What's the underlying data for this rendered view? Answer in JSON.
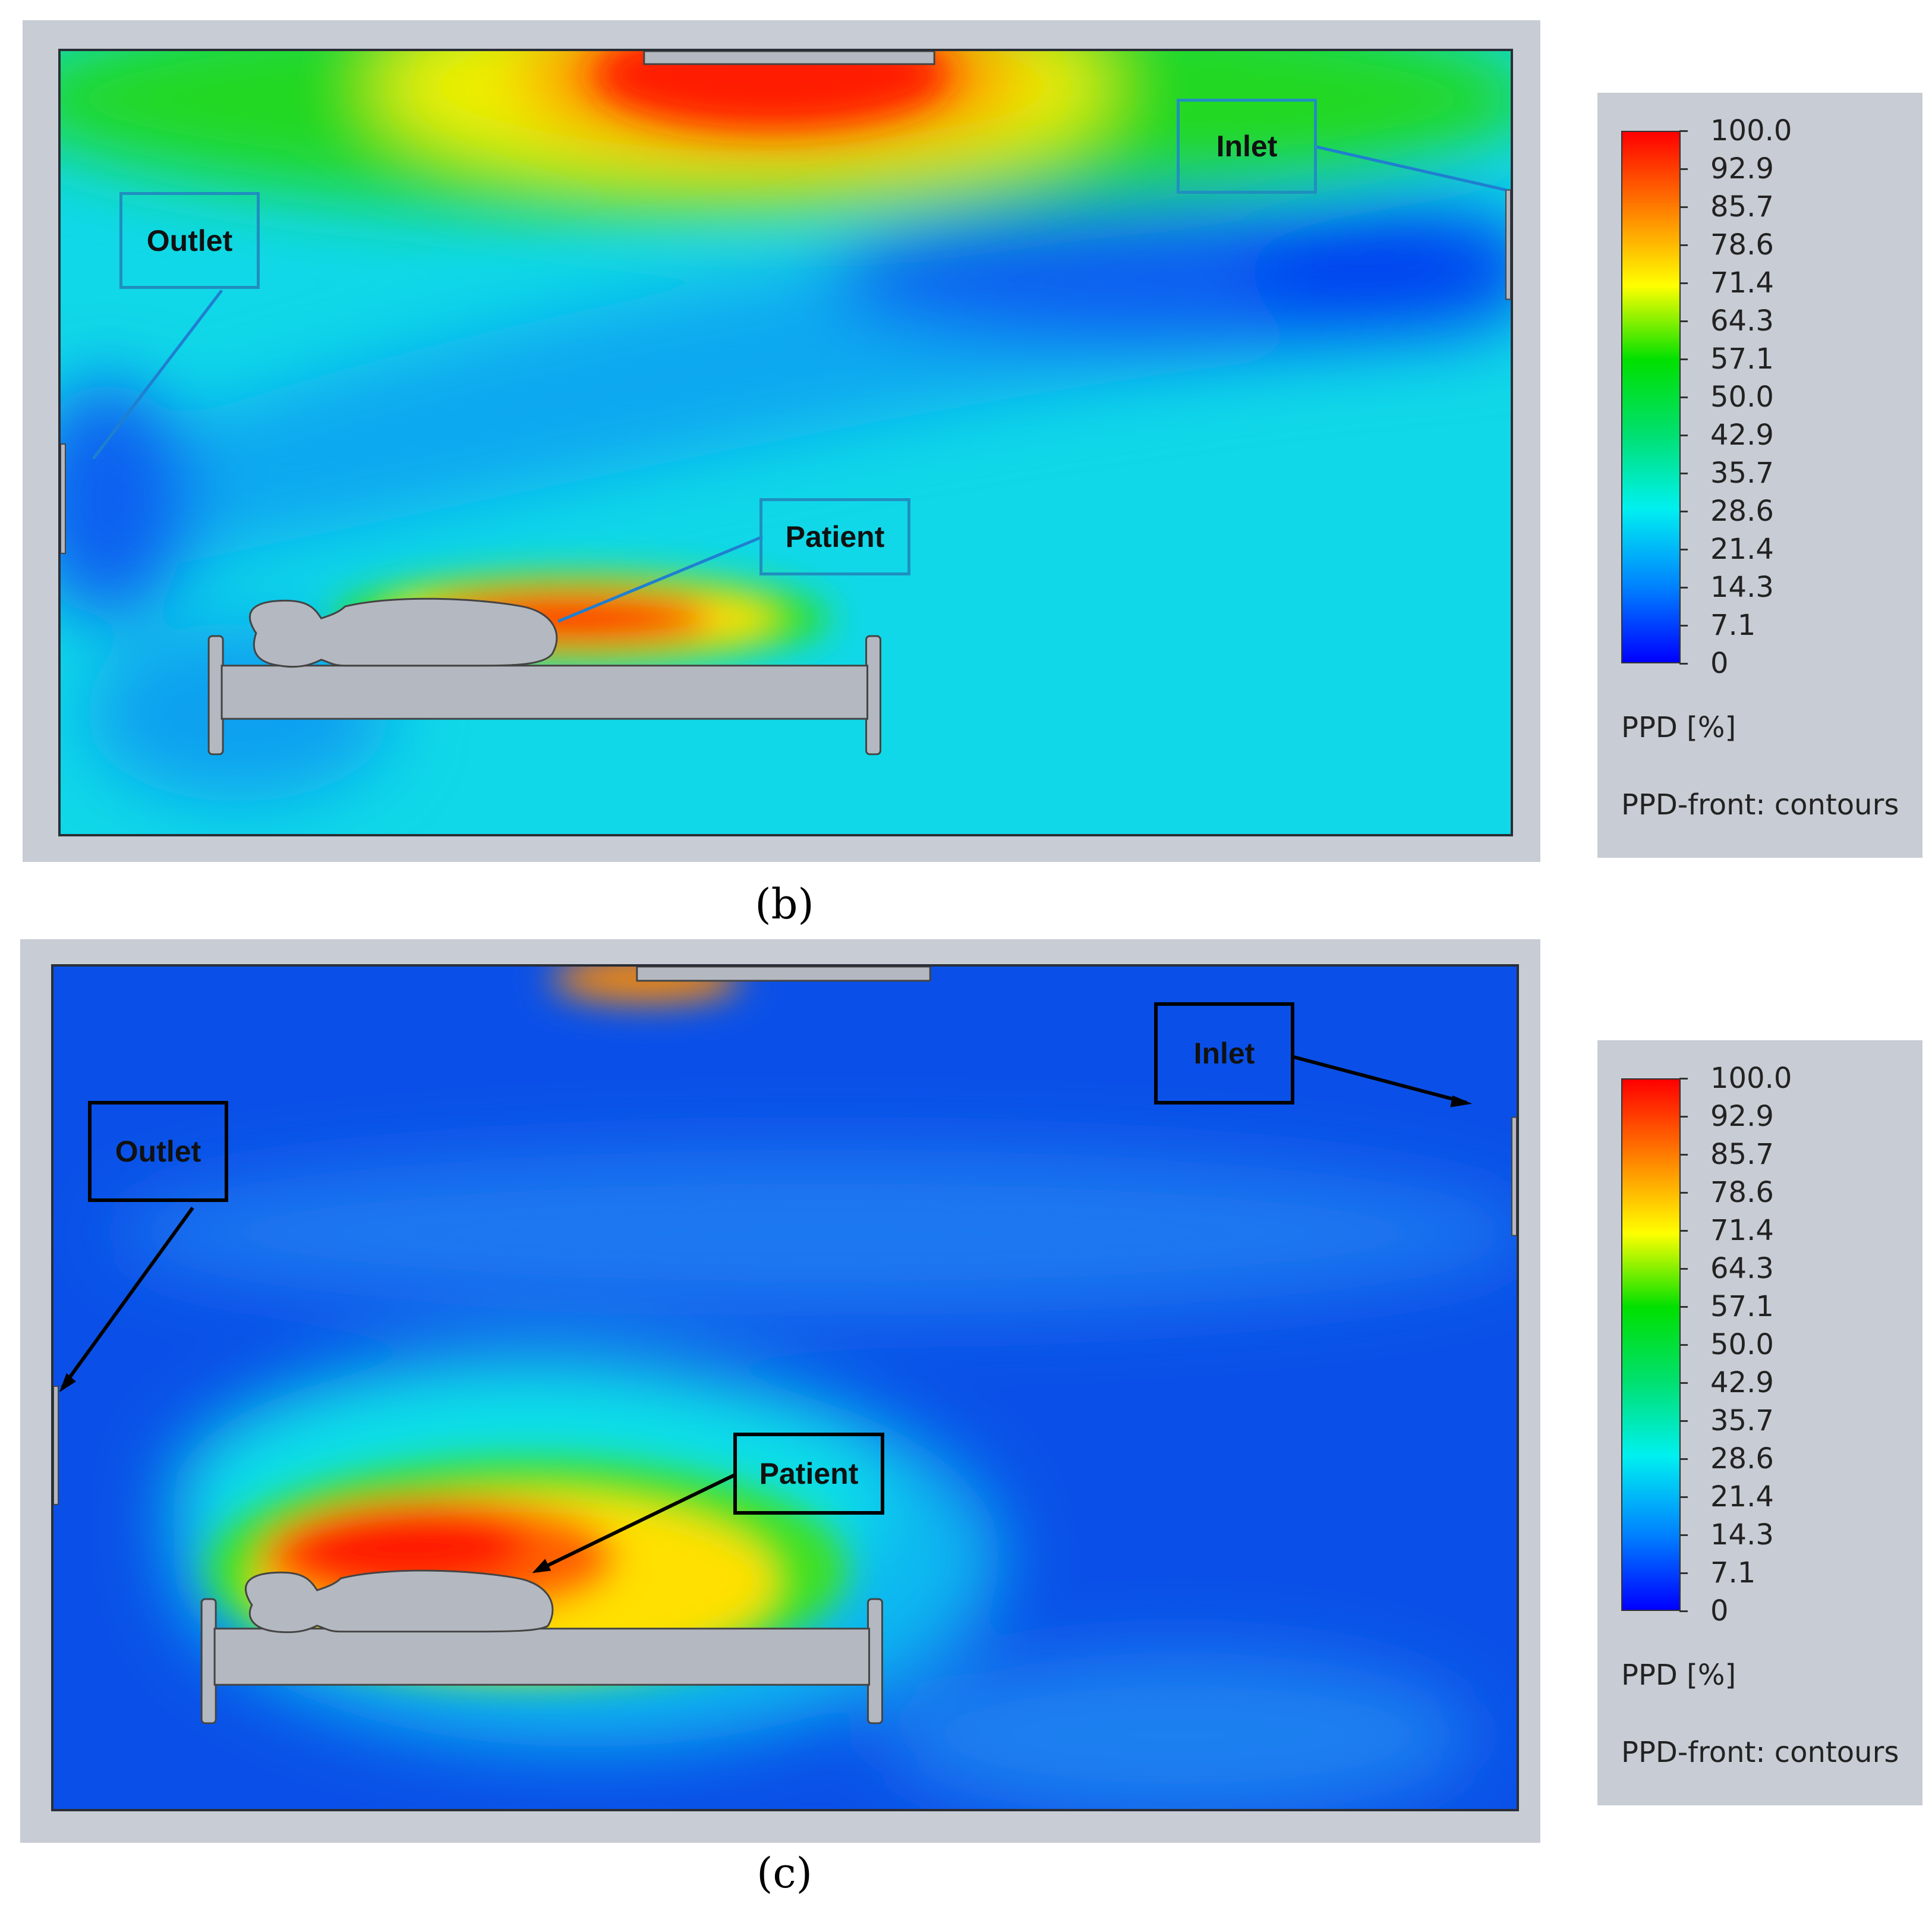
{
  "panels": [
    {
      "caption": "(b)",
      "labels": {
        "outlet": "Outlet",
        "inlet": "Inlet",
        "patient": "Patient"
      },
      "callout_color": "#1f8fbf"
    },
    {
      "caption": "(c)",
      "labels": {
        "outlet": "Outlet",
        "inlet": "Inlet",
        "patient": "Patient"
      },
      "callout_color": "#000000"
    }
  ],
  "legend": {
    "ticks": [
      "100.0",
      "92.9",
      "85.7",
      "78.6",
      "71.4",
      "64.3",
      "57.1",
      "50.0",
      "42.9",
      "35.7",
      "28.6",
      "21.4",
      "14.3",
      "7.1",
      "0"
    ],
    "unit_label": "PPD [%]",
    "plot_label": "PPD-front: contours"
  }
}
